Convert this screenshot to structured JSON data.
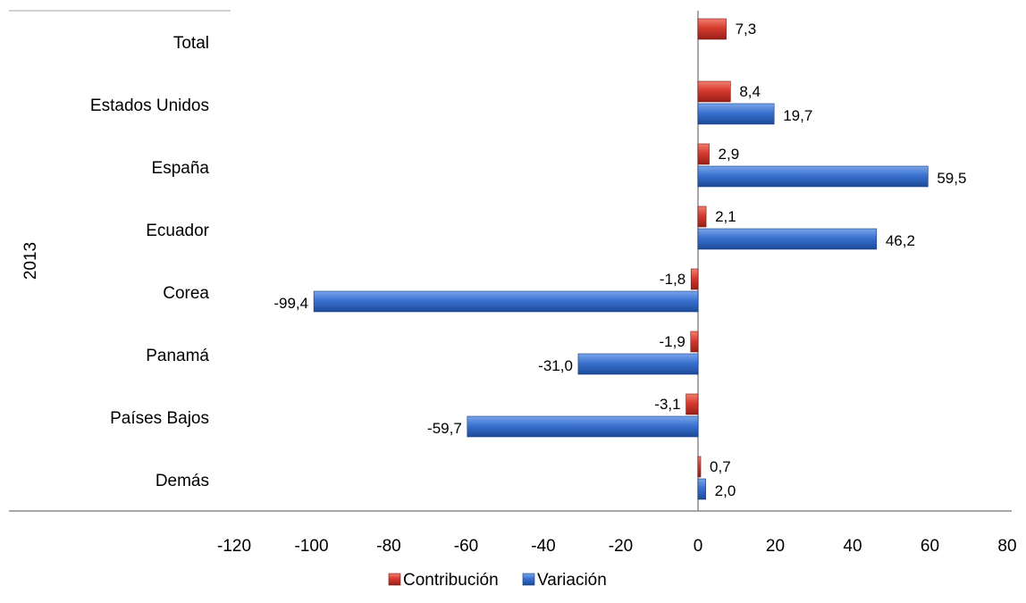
{
  "chart_data": {
    "type": "bar",
    "orientation": "horizontal",
    "group_label": "2013",
    "categories": [
      "Total",
      "Estados Unidos",
      "España",
      "Ecuador",
      "Corea",
      "Panamá",
      "Países Bajos",
      "Demás"
    ],
    "series": [
      {
        "name": "Contribución",
        "color": "#c0392b",
        "values": [
          7.3,
          8.4,
          2.9,
          2.1,
          -1.8,
          -1.9,
          -3.1,
          0.7
        ],
        "labels": [
          "7,3",
          "8,4",
          "2,9",
          "2,1",
          "-1,8",
          "-1,9",
          "-3,1",
          "0,7"
        ]
      },
      {
        "name": "Variación",
        "color": "#2f67c4",
        "values": [
          null,
          19.7,
          59.5,
          46.2,
          -99.4,
          -31.0,
          -59.7,
          2.0
        ],
        "labels": [
          "",
          "19,7",
          "59,5",
          "46,2",
          "-99,4",
          "-31,0",
          "-59,7",
          "2,0"
        ]
      }
    ],
    "xlim": [
      -120,
      80
    ],
    "xticks": [
      -120,
      -100,
      -80,
      -60,
      -40,
      -20,
      0,
      20,
      40,
      60,
      80
    ],
    "xtick_labels": [
      "-120",
      "-100",
      "-80",
      "-60",
      "-40",
      "-20",
      "0",
      "20",
      "40",
      "60",
      "80"
    ],
    "grid": false,
    "legend_position": "bottom"
  }
}
